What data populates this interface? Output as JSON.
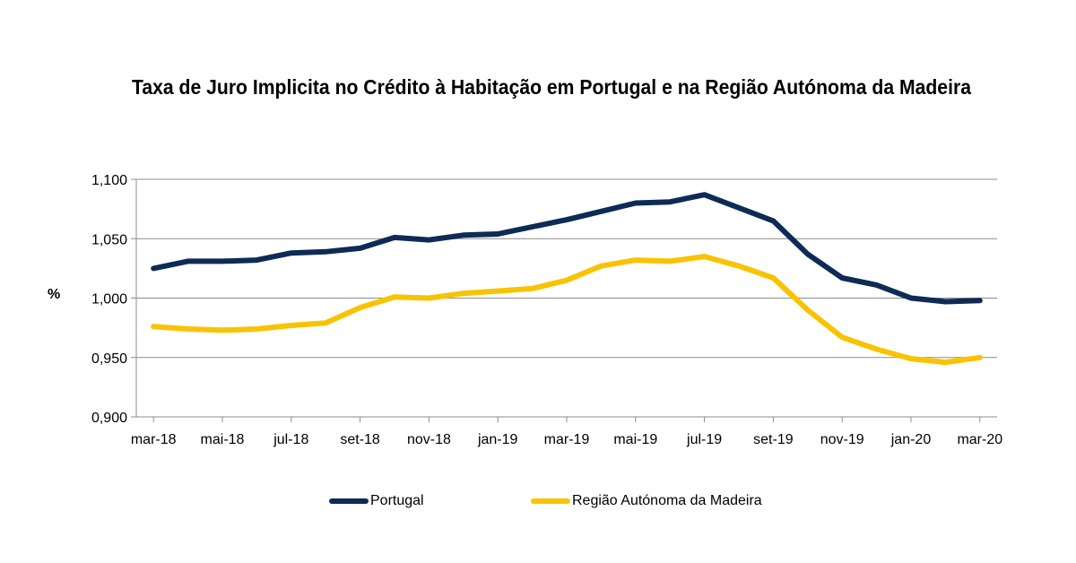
{
  "chart_data": {
    "type": "line",
    "title": "Taxa de Juro Implicita no Crédito à Habitação em Portugal e na Região Autónoma da Madeira",
    "ylabel": "%",
    "xlabel": "",
    "ylim": [
      0.9,
      1.1
    ],
    "yticks": [
      "0,900",
      "0,950",
      "1,000",
      "1,050",
      "1,100"
    ],
    "ytick_values": [
      0.9,
      0.95,
      1.0,
      1.05,
      1.1
    ],
    "x": [
      "mar-18",
      "abr-18",
      "mai-18",
      "jun-18",
      "jul-18",
      "ago-18",
      "set-18",
      "out-18",
      "nov-18",
      "dez-18",
      "jan-19",
      "fev-19",
      "mar-19",
      "abr-19",
      "mai-19",
      "jun-19",
      "jul-19",
      "ago-19",
      "set-19",
      "out-19",
      "nov-19",
      "dez-19",
      "jan-20",
      "fev-20",
      "mar-20"
    ],
    "xtick_labels": [
      "mar-18",
      "mai-18",
      "jul-18",
      "set-18",
      "nov-18",
      "jan-19",
      "mar-19",
      "mai-19",
      "jul-19",
      "set-19",
      "nov-19",
      "jan-20",
      "mar-20"
    ],
    "grid": true,
    "legend_position": "bottom",
    "series": [
      {
        "name": "Portugal",
        "color": "#0d2b55",
        "values": [
          1.025,
          1.031,
          1.031,
          1.032,
          1.038,
          1.039,
          1.042,
          1.051,
          1.049,
          1.053,
          1.054,
          1.06,
          1.066,
          1.073,
          1.08,
          1.081,
          1.087,
          1.076,
          1.065,
          1.037,
          1.017,
          1.011,
          1.0,
          0.997,
          0.998
        ]
      },
      {
        "name": "Região Autónoma da Madeira",
        "color": "#f8c300",
        "values": [
          0.976,
          0.974,
          0.973,
          0.974,
          0.977,
          0.979,
          0.992,
          1.001,
          1.0,
          1.004,
          1.006,
          1.008,
          1.015,
          1.027,
          1.032,
          1.031,
          1.035,
          1.027,
          1.017,
          0.99,
          0.967,
          0.957,
          0.949,
          0.946,
          0.95
        ]
      }
    ]
  }
}
